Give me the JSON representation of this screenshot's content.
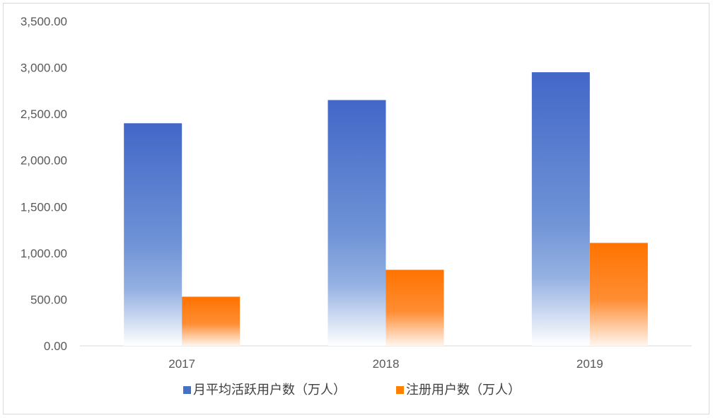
{
  "chart_data": {
    "type": "bar",
    "categories": [
      "2017",
      "2018",
      "2019"
    ],
    "series": [
      {
        "name": "月平均活跃用户数（万人）",
        "values": [
          2400,
          2650,
          2950
        ],
        "color": "#4472c4"
      },
      {
        "name": "注册用户数（万人）",
        "values": [
          530,
          820,
          1110
        ],
        "color": "#ff7f00"
      }
    ],
    "ylim": [
      0,
      3500
    ],
    "yticks": [
      "0.00",
      "500.00",
      "1,000.00",
      "1,500.00",
      "2,000.00",
      "2,500.00",
      "3,000.00",
      "3,500.00"
    ],
    "grid": false,
    "legend_position": "bottom"
  }
}
